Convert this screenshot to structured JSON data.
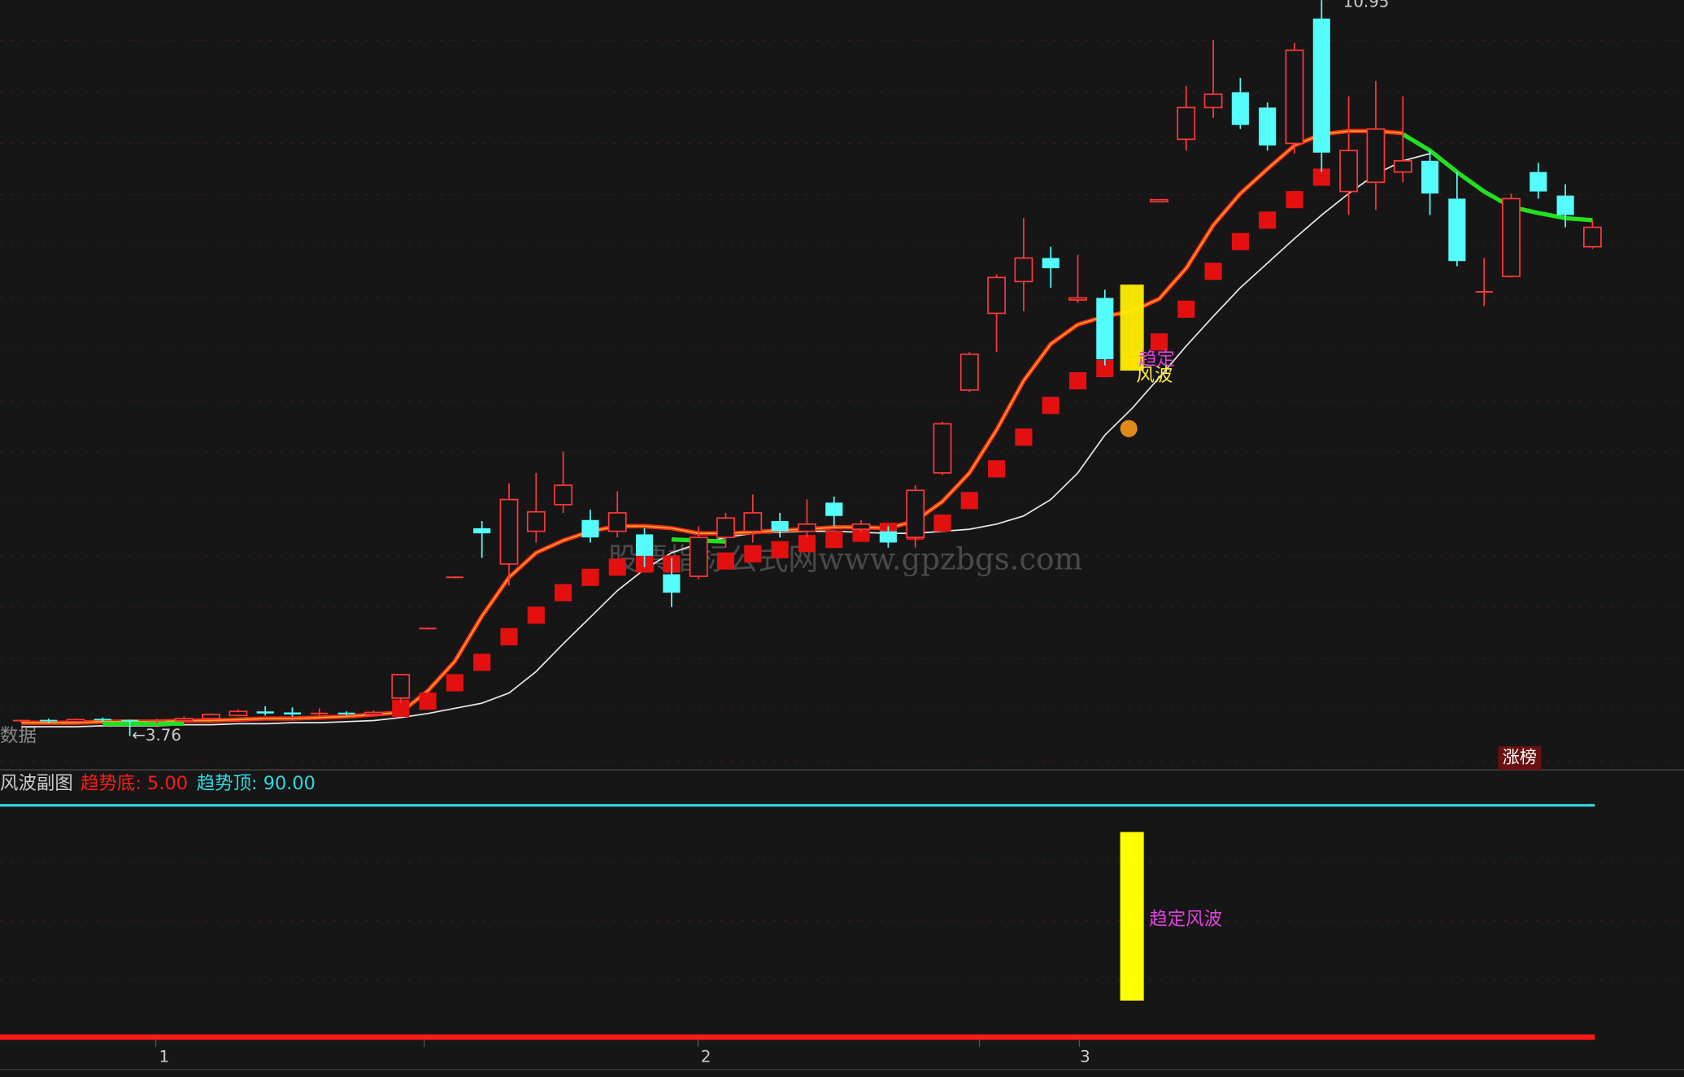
{
  "chart_data": [
    {
      "type": "candlestick",
      "categories": [
        null,
        null,
        null,
        null,
        null,
        "1",
        null,
        null,
        null,
        null,
        null,
        null,
        null,
        null,
        null,
        null,
        null,
        null,
        null,
        null,
        null,
        null,
        null,
        null,
        null,
        "2",
        null,
        null,
        null,
        null,
        null,
        null,
        null,
        null,
        null,
        null,
        null,
        null,
        null,
        "3",
        null,
        null,
        null,
        null,
        null,
        null,
        null,
        null,
        null,
        null,
        null,
        null,
        null,
        null,
        null,
        null,
        null,
        null,
        null
      ],
      "open": [
        3.9,
        3.91,
        3.9,
        3.92,
        3.91,
        3.9,
        3.91,
        3.93,
        3.96,
        4.0,
        3.99,
        3.97,
        3.98,
        3.97,
        4.13,
        4.81,
        5.31,
        5.79,
        5.44,
        5.76,
        6.02,
        5.87,
        5.76,
        5.73,
        5.34,
        5.32,
        5.7,
        5.76,
        5.86,
        5.76,
        6.04,
        5.78,
        5.76,
        5.7,
        6.33,
        7.14,
        7.89,
        8.2,
        8.43,
        8.02,
        8.04,
        7.44,
        8.98,
        9.59,
        9.9,
        10.05,
        9.9,
        9.55,
        10.77,
        9.08,
        9.17,
        9.27,
        9.38,
        9.01,
        8.1,
        8.25,
        9.27,
        9.04,
        8.54
      ],
      "high": [
        3.92,
        3.93,
        3.93,
        3.94,
        3.92,
        3.93,
        3.95,
        3.98,
        4.02,
        4.05,
        4.04,
        4.03,
        4.0,
        4.01,
        4.36,
        4.82,
        5.32,
        5.86,
        6.23,
        6.33,
        6.54,
        5.97,
        6.15,
        5.79,
        5.5,
        5.81,
        5.94,
        6.12,
        5.94,
        6.07,
        6.1,
        5.87,
        5.81,
        6.21,
        6.83,
        7.51,
        8.27,
        8.82,
        8.54,
        8.46,
        8.12,
        8.17,
        9.0,
        10.11,
        10.56,
        10.19,
        9.95,
        10.53,
        10.95,
        10.01,
        10.16,
        10.01,
        9.48,
        9.27,
        8.43,
        9.06,
        9.36,
        9.15,
        8.8
      ],
      "low": [
        3.89,
        3.89,
        3.89,
        3.9,
        3.76,
        3.88,
        3.9,
        3.92,
        3.95,
        3.96,
        3.95,
        3.95,
        3.96,
        3.96,
        4.08,
        4.8,
        5.3,
        5.5,
        5.23,
        5.65,
        5.94,
        5.65,
        5.7,
        5.41,
        5.02,
        5.29,
        5.6,
        5.65,
        5.7,
        5.7,
        5.81,
        5.75,
        5.6,
        5.6,
        6.31,
        7.12,
        7.51,
        7.91,
        8.14,
        7.99,
        7.38,
        7.33,
        8.98,
        9.48,
        9.8,
        9.69,
        9.48,
        9.45,
        9.27,
        8.85,
        8.9,
        9.17,
        8.85,
        8.35,
        7.96,
        8.24,
        9.01,
        8.73,
        8.52
      ],
      "close": [
        3.91,
        3.9,
        3.92,
        3.91,
        3.9,
        3.91,
        3.93,
        3.97,
        4.0,
        3.98,
        3.97,
        3.98,
        3.97,
        3.99,
        4.36,
        4.81,
        5.31,
        5.74,
        6.07,
        5.95,
        6.21,
        5.7,
        5.94,
        5.52,
        5.16,
        5.7,
        5.89,
        5.94,
        5.76,
        5.83,
        5.91,
        5.83,
        5.65,
        6.16,
        6.81,
        7.49,
        8.24,
        8.43,
        8.33,
        8.04,
        7.44,
        7.49,
        9.0,
        9.9,
        10.03,
        9.73,
        9.53,
        10.46,
        9.46,
        9.48,
        9.69,
        9.38,
        9.06,
        8.4,
        8.1,
        9.01,
        9.08,
        8.85,
        8.73
      ],
      "up_color": "#ff3838",
      "down_color": "#54fcfc",
      "ylim": [
        3.45,
        10.95
      ],
      "overlays": [
        {
          "color": "#e8e8e8",
          "values": [
            3.85,
            3.85,
            3.85,
            3.86,
            3.86,
            3.86,
            3.87,
            3.87,
            3.88,
            3.88,
            3.89,
            3.89,
            3.9,
            3.91,
            3.94,
            3.98,
            4.03,
            4.08,
            4.18,
            4.39,
            4.66,
            4.92,
            5.18,
            5.39,
            5.55,
            5.64,
            5.7,
            5.74,
            5.75,
            5.76,
            5.76,
            5.75,
            5.74,
            5.74,
            5.76,
            5.78,
            5.83,
            5.91,
            6.07,
            6.33,
            6.7,
            6.96,
            7.26,
            7.57,
            7.86,
            8.14,
            8.38,
            8.62,
            8.85,
            9.06,
            9.25,
            9.38,
            9.45,
            null,
            null,
            null,
            null,
            null,
            null
          ]
        },
        {
          "color": "#ff2a1a",
          "values": [
            3.89,
            3.89,
            3.89,
            3.9,
            3.9,
            3.9,
            3.91,
            3.91,
            3.92,
            3.93,
            3.93,
            3.94,
            3.95,
            3.97,
            3.99,
            4.2,
            4.49,
            4.93,
            5.31,
            5.55,
            5.67,
            5.76,
            5.81,
            5.81,
            5.79,
            5.74,
            5.74,
            5.75,
            5.77,
            5.78,
            5.8,
            5.8,
            5.79,
            5.86,
            6.05,
            6.33,
            6.75,
            7.23,
            7.59,
            7.78,
            7.86,
            7.91,
            8.03,
            8.33,
            8.75,
            9.06,
            9.3,
            9.53,
            9.64,
            9.67,
            9.67,
            9.65,
            null,
            null,
            null,
            null,
            null,
            null,
            null
          ]
        },
        {
          "color": "#22e022",
          "values": [
            null,
            null,
            null,
            3.88,
            3.88,
            3.88,
            3.88,
            null,
            null,
            null,
            null,
            null,
            null,
            null,
            null,
            null,
            null,
            null,
            null,
            null,
            null,
            null,
            null,
            null,
            5.68,
            5.67,
            5.66,
            null,
            null,
            null,
            null,
            null,
            null,
            null,
            null,
            null,
            null,
            null,
            null,
            null,
            null,
            null,
            null,
            null,
            null,
            null,
            null,
            null,
            null,
            null,
            null,
            9.64,
            9.48,
            9.27,
            9.08,
            8.93,
            8.87,
            8.82,
            8.8
          ]
        }
      ],
      "signal": [
        null,
        null,
        null,
        null,
        null,
        null,
        null,
        null,
        null,
        null,
        null,
        null,
        null,
        null,
        4.03,
        4.1,
        4.28,
        4.48,
        4.73,
        4.94,
        5.16,
        5.31,
        5.41,
        5.44,
        5.44,
        5.41,
        5.47,
        5.54,
        5.58,
        5.64,
        5.68,
        5.74,
        5.76,
        5.76,
        5.84,
        6.06,
        6.37,
        6.68,
        6.99,
        7.23,
        7.35,
        7.44,
        7.61,
        7.93,
        8.3,
        8.59,
        8.8,
        9.0,
        9.22,
        null,
        null,
        null,
        null,
        null,
        null,
        null,
        null,
        null,
        null
      ],
      "signal_color": "#e41010",
      "high_label": "10.95",
      "low_label": "←3.76",
      "signal_labels": [
        "趋定",
        "风波"
      ],
      "badge": "涨榜",
      "corner_label": "数据",
      "watermark": "股票指标公式网www.gpzbgs.com"
    },
    {
      "type": "floating-bar",
      "title": "风波副图",
      "bottom_label": "趋势底: 5.00",
      "top_label": "趋势顶: 90.00",
      "levels": [
        5,
        90
      ],
      "level_colors": [
        "#ff1a1a",
        "#30d8e0"
      ],
      "lows": [
        null,
        null,
        null,
        null,
        null,
        null,
        null,
        null,
        null,
        null,
        null,
        null,
        null,
        null,
        null,
        null,
        null,
        null,
        null,
        null,
        null,
        null,
        null,
        null,
        null,
        null,
        null,
        null,
        null,
        null,
        null,
        null,
        null,
        null,
        null,
        null,
        null,
        null,
        null,
        null,
        null,
        18.4,
        null,
        null,
        null,
        null,
        null,
        null,
        null,
        null,
        null,
        null,
        null,
        null,
        null,
        null,
        null,
        null,
        null
      ],
      "highs": [
        null,
        null,
        null,
        null,
        null,
        null,
        null,
        null,
        null,
        null,
        null,
        null,
        null,
        null,
        null,
        null,
        null,
        null,
        null,
        null,
        null,
        null,
        null,
        null,
        null,
        null,
        null,
        null,
        null,
        null,
        null,
        null,
        null,
        null,
        null,
        null,
        null,
        null,
        null,
        null,
        null,
        80.2,
        null,
        null,
        null,
        null,
        null,
        null,
        null,
        null,
        null,
        null,
        null,
        null,
        null,
        null,
        null,
        null,
        null
      ],
      "color": "#ffff00",
      "bar_label": "趋定风波",
      "ylim": [
        4.2,
        102.6
      ]
    }
  ]
}
